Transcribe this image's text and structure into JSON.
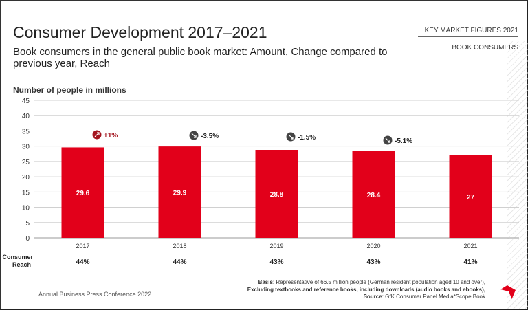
{
  "header": {
    "title": "Consumer Development 2017–2021",
    "subtitle": "Book consumers in the general public book market: Amount, Change compared to previous year, Reach",
    "tag1": "KEY MARKET  FIGURES 2021",
    "tag2": "BOOK CONSUMERS"
  },
  "chart_data": {
    "type": "bar",
    "ylabel": "Number of people in millions",
    "ylim": [
      0,
      45
    ],
    "yticks": [
      "0",
      "5",
      "10",
      "15",
      "20",
      "25",
      "30",
      "35",
      "40",
      "45"
    ],
    "grid": true,
    "categories": [
      "2017",
      "2018",
      "2019",
      "2020",
      "2021"
    ],
    "values": [
      29.6,
      29.9,
      28.8,
      28.4,
      27
    ],
    "value_labels": [
      "29.6",
      "29.9",
      "28.8",
      "28.4",
      "27"
    ],
    "changes": [
      {
        "label": "+1%",
        "direction": "up"
      },
      {
        "label": "-3.5%",
        "direction": "down"
      },
      {
        "label": "-1.5%",
        "direction": "down"
      },
      {
        "label": "-5.1%",
        "direction": "down"
      }
    ],
    "reach_label": "Consumer Reach",
    "reach": [
      "44%",
      "44%",
      "43%",
      "43%",
      "41%"
    ],
    "colors": {
      "bar": "#e2001a",
      "up": "#a3141e",
      "down": "#444444"
    }
  },
  "footer": {
    "event": "Annual Business Press Conference  2022",
    "basis_label": "Basis",
    "basis": ": Representative  of 66.5 million people (German resident population aged 10 and over),",
    "excl": "Excluding textbooks and reference books, including downloads (audio books and ebooks),",
    "source_label": "Source",
    "source": ": GfK Consumer Panel Media*Scope Book"
  }
}
